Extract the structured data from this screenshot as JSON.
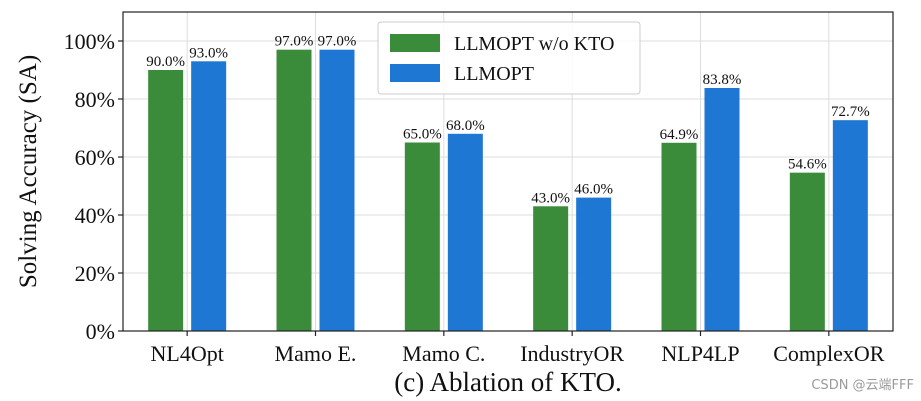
{
  "chart_data": {
    "type": "bar",
    "categories": [
      "NL4Opt",
      "Mamo E.",
      "Mamo C.",
      "IndustryOR",
      "NLP4LP",
      "ComplexOR"
    ],
    "series": [
      {
        "name": "LLMOPT w/o KTO",
        "color": "#3a8c3a",
        "values": [
          90.0,
          97.0,
          65.0,
          43.0,
          64.9,
          54.6
        ],
        "labels": [
          "90.0%",
          "97.0%",
          "65.0%",
          "43.0%",
          "64.9%",
          "54.6%"
        ]
      },
      {
        "name": "LLMOPT",
        "color": "#1f77d4",
        "values": [
          93.0,
          97.0,
          68.0,
          46.0,
          83.8,
          72.7
        ],
        "labels": [
          "93.0%",
          "97.0%",
          "68.0%",
          "46.0%",
          "83.8%",
          "72.7%"
        ]
      }
    ],
    "ylabel": "Solving Accuracy (SA)",
    "yticks": [
      0,
      20,
      40,
      60,
      80,
      100
    ],
    "ytick_labels": [
      "0%",
      "20%",
      "40%",
      "60%",
      "80%",
      "100%"
    ],
    "ylim": [
      0,
      110
    ],
    "grid": true,
    "legend_position": "top-center",
    "caption": "(c) Ablation of KTO."
  },
  "watermark": "CSDN @云端FFF"
}
